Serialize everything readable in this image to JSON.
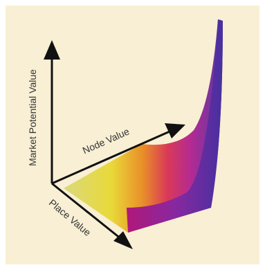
{
  "axes": {
    "vertical": "Market Potential Value",
    "depth": "Node Value",
    "front": "Place Value"
  }
}
